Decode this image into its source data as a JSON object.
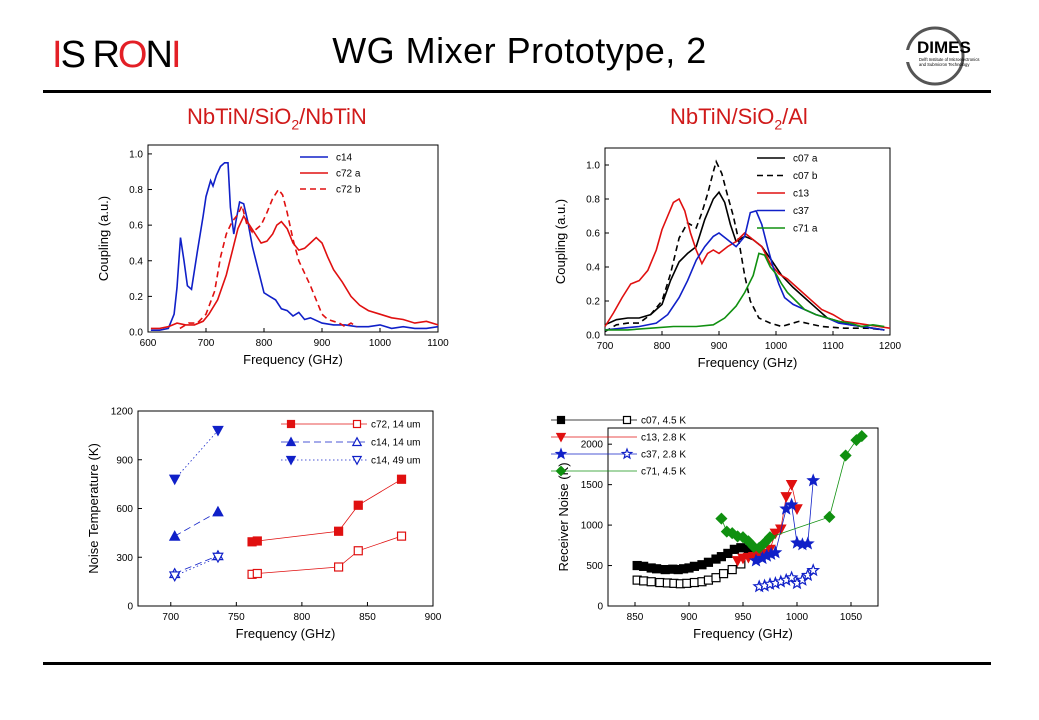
{
  "header": {
    "title": "WG Mixer Prototype, 2",
    "logo_left": "IS RON I",
    "logo_right": {
      "main": "DIMES",
      "line1": "Delft Institute of Microelectronics",
      "line2": "and Submicron Technology"
    }
  },
  "subtitles": {
    "left_pre": "NbTiN/SiO",
    "left_sub": "2",
    "left_post": "/NbTiN",
    "right_pre": "NbTiN/SiO",
    "right_sub": "2",
    "right_post": "/Al"
  },
  "colors": {
    "red": "#e01010",
    "blue": "#1020c8",
    "green": "#109010",
    "black": "#000000"
  },
  "chart_data": [
    {
      "type": "line",
      "xlabel": "Frequency (GHz)",
      "ylabel": "Coupling (a.u.)",
      "xlim": [
        600,
        1100
      ],
      "ylim": [
        0,
        1.05
      ],
      "xticks": [
        600,
        700,
        800,
        900,
        1000,
        1100
      ],
      "yticks": [
        0.0,
        0.2,
        0.4,
        0.6,
        0.8,
        1.0
      ],
      "xtick_labels": [
        "600",
        "700",
        "800",
        "900",
        "1000",
        "1100"
      ],
      "ytick_labels": [
        "0.0",
        "0.2",
        "0.4",
        "0.6",
        "0.8",
        "1.0"
      ],
      "legend_position": "top-right",
      "series": [
        {
          "name": "c14",
          "color": "#1020c8",
          "dash": "",
          "x": [
            605,
            620,
            635,
            645,
            650,
            656,
            662,
            668,
            675,
            685,
            695,
            700,
            708,
            712,
            718,
            725,
            732,
            738,
            742,
            748,
            752,
            758,
            765,
            772,
            780,
            790,
            800,
            810,
            820,
            830,
            840,
            850,
            860,
            870,
            880,
            900,
            920,
            940,
            960,
            980,
            1000,
            1020,
            1040,
            1060,
            1080,
            1100
          ],
          "y": [
            0.01,
            0.01,
            0.02,
            0.1,
            0.25,
            0.53,
            0.4,
            0.26,
            0.24,
            0.45,
            0.65,
            0.76,
            0.85,
            0.82,
            0.88,
            0.93,
            0.95,
            0.95,
            0.7,
            0.55,
            0.63,
            0.73,
            0.72,
            0.62,
            0.48,
            0.35,
            0.22,
            0.2,
            0.18,
            0.13,
            0.12,
            0.09,
            0.11,
            0.07,
            0.08,
            0.05,
            0.04,
            0.04,
            0.03,
            0.03,
            0.04,
            0.02,
            0.03,
            0.02,
            0.02,
            0.03
          ]
        },
        {
          "name": "c72 a",
          "color": "#e01010",
          "dash": "",
          "x": [
            605,
            620,
            635,
            650,
            665,
            680,
            695,
            705,
            720,
            735,
            745,
            755,
            765,
            775,
            785,
            795,
            805,
            815,
            822,
            830,
            840,
            850,
            860,
            870,
            880,
            890,
            900,
            910,
            920,
            935,
            950,
            965,
            980,
            1000,
            1020,
            1040,
            1060,
            1080,
            1100
          ],
          "y": [
            0.02,
            0.02,
            0.03,
            0.05,
            0.04,
            0.04,
            0.06,
            0.1,
            0.18,
            0.32,
            0.45,
            0.58,
            0.65,
            0.6,
            0.55,
            0.5,
            0.51,
            0.55,
            0.6,
            0.62,
            0.58,
            0.5,
            0.46,
            0.47,
            0.5,
            0.53,
            0.5,
            0.42,
            0.35,
            0.28,
            0.2,
            0.15,
            0.12,
            0.1,
            0.08,
            0.07,
            0.05,
            0.06,
            0.04
          ]
        },
        {
          "name": "c72 b",
          "color": "#e01010",
          "dash": "6,4",
          "x": [
            655,
            670,
            685,
            700,
            715,
            725,
            735,
            745,
            755,
            762,
            770,
            780,
            795,
            805,
            815,
            825,
            832,
            840,
            850,
            860,
            870,
            880,
            890,
            900,
            910,
            920,
            930,
            940,
            950,
            960
          ],
          "y": [
            0.02,
            0.05,
            0.05,
            0.1,
            0.23,
            0.42,
            0.55,
            0.62,
            0.66,
            0.71,
            0.61,
            0.56,
            0.6,
            0.67,
            0.75,
            0.8,
            0.77,
            0.67,
            0.52,
            0.4,
            0.33,
            0.26,
            0.18,
            0.1,
            0.07,
            0.06,
            0.05,
            0.03,
            0.05,
            0.03
          ]
        }
      ]
    },
    {
      "type": "line",
      "xlabel": "Frequency (GHz)",
      "ylabel": "Coupling (a.u.)",
      "xlim": [
        700,
        1200
      ],
      "ylim": [
        0,
        1.1
      ],
      "xticks": [
        700,
        800,
        900,
        1000,
        1100,
        1200
      ],
      "yticks": [
        0.0,
        0.2,
        0.4,
        0.6,
        0.8,
        1.0
      ],
      "xtick_labels": [
        "700",
        "800",
        "900",
        "1000",
        "1100",
        "1200"
      ],
      "ytick_labels": [
        "0.0",
        "0.2",
        "0.4",
        "0.6",
        "0.8",
        "1.0"
      ],
      "legend_position": "top-right",
      "series": [
        {
          "name": "c07 a",
          "color": "#000000",
          "dash": "",
          "x": [
            700,
            720,
            740,
            760,
            780,
            800,
            815,
            830,
            845,
            860,
            875,
            890,
            900,
            910,
            920,
            930,
            945,
            960,
            975,
            990,
            1010,
            1030,
            1050,
            1070,
            1090,
            1110,
            1130,
            1150,
            1170,
            1190
          ],
          "y": [
            0.06,
            0.09,
            0.1,
            0.1,
            0.12,
            0.18,
            0.32,
            0.43,
            0.48,
            0.52,
            0.68,
            0.8,
            0.84,
            0.78,
            0.65,
            0.55,
            0.58,
            0.56,
            0.52,
            0.45,
            0.35,
            0.28,
            0.22,
            0.16,
            0.1,
            0.08,
            0.06,
            0.05,
            0.04,
            0.03
          ]
        },
        {
          "name": "c07 b",
          "color": "#000000",
          "dash": "6,4",
          "x": [
            700,
            720,
            740,
            760,
            780,
            800,
            815,
            830,
            845,
            860,
            870,
            880,
            890,
            895,
            905,
            915,
            925,
            935,
            945,
            955,
            970,
            990,
            1010,
            1040,
            1080,
            1120,
            1160,
            1190
          ],
          "y": [
            0.02,
            0.06,
            0.07,
            0.07,
            0.12,
            0.2,
            0.36,
            0.57,
            0.66,
            0.63,
            0.72,
            0.83,
            0.96,
            1.02,
            0.95,
            0.82,
            0.7,
            0.55,
            0.35,
            0.2,
            0.1,
            0.07,
            0.05,
            0.08,
            0.05,
            0.04,
            0.04,
            0.03
          ]
        },
        {
          "name": "c13",
          "color": "#e01010",
          "dash": "",
          "x": [
            700,
            715,
            730,
            745,
            760,
            775,
            790,
            800,
            810,
            820,
            830,
            840,
            850,
            860,
            870,
            880,
            890,
            900,
            915,
            930,
            945,
            960,
            975,
            990,
            1005,
            1020,
            1040,
            1060,
            1080,
            1100,
            1120,
            1140,
            1160,
            1180,
            1200
          ],
          "y": [
            0.05,
            0.13,
            0.22,
            0.3,
            0.32,
            0.38,
            0.5,
            0.62,
            0.7,
            0.78,
            0.8,
            0.73,
            0.6,
            0.5,
            0.42,
            0.48,
            0.5,
            0.48,
            0.52,
            0.55,
            0.6,
            0.56,
            0.52,
            0.42,
            0.36,
            0.33,
            0.27,
            0.21,
            0.15,
            0.12,
            0.08,
            0.07,
            0.06,
            0.05,
            0.04
          ]
        },
        {
          "name": "c37",
          "color": "#1020c8",
          "dash": "",
          "x": [
            700,
            730,
            760,
            790,
            810,
            830,
            845,
            860,
            875,
            890,
            900,
            915,
            930,
            945,
            955,
            965,
            975,
            985,
            995,
            1005,
            1015,
            1030,
            1050,
            1070,
            1090,
            1110,
            1130,
            1150,
            1170,
            1190
          ],
          "y": [
            0.03,
            0.04,
            0.05,
            0.07,
            0.12,
            0.22,
            0.32,
            0.44,
            0.52,
            0.58,
            0.6,
            0.56,
            0.52,
            0.58,
            0.72,
            0.73,
            0.65,
            0.52,
            0.4,
            0.3,
            0.22,
            0.18,
            0.15,
            0.12,
            0.1,
            0.07,
            0.06,
            0.05,
            0.04,
            0.03
          ]
        },
        {
          "name": "c71 a",
          "color": "#109010",
          "dash": "",
          "x": [
            700,
            740,
            780,
            820,
            860,
            890,
            910,
            930,
            945,
            960,
            970,
            980,
            990,
            1000,
            1010,
            1020,
            1035,
            1050,
            1070,
            1090,
            1110,
            1130,
            1150,
            1170,
            1190
          ],
          "y": [
            0.03,
            0.03,
            0.04,
            0.05,
            0.05,
            0.06,
            0.1,
            0.17,
            0.25,
            0.35,
            0.48,
            0.47,
            0.4,
            0.36,
            0.3,
            0.25,
            0.2,
            0.15,
            0.12,
            0.1,
            0.08,
            0.07,
            0.05,
            0.06,
            0.05
          ]
        }
      ]
    },
    {
      "type": "scatter",
      "xlabel": "Frequency (GHz)",
      "ylabel": "Noise Temperature (K)",
      "xlim": [
        675,
        900
      ],
      "ylim": [
        0,
        1200
      ],
      "xticks": [
        700,
        750,
        800,
        850,
        900
      ],
      "yticks": [
        0,
        300,
        600,
        900,
        1200
      ],
      "xtick_labels": [
        "700",
        "750",
        "800",
        "850",
        "900"
      ],
      "ytick_labels": [
        "0",
        "300",
        "600",
        "900",
        "1200"
      ],
      "legend_position": "top-right",
      "series": [
        {
          "name": "c72, 14 um",
          "color": "#e01010",
          "marker": "square",
          "filled": true,
          "line": "solid",
          "x": [
            762,
            766,
            828,
            843,
            876
          ],
          "y": [
            395,
            400,
            460,
            620,
            780
          ]
        },
        {
          "name": "",
          "color": "#e01010",
          "marker": "square",
          "filled": false,
          "line": "solid",
          "x": [
            762,
            766,
            828,
            843,
            876
          ],
          "y": [
            195,
            200,
            240,
            340,
            430
          ]
        },
        {
          "name": "c14, 14 um",
          "color": "#1020c8",
          "marker": "triangle-up",
          "filled": true,
          "line": "dash",
          "x": [
            703,
            736
          ],
          "y": [
            430,
            580
          ]
        },
        {
          "name": "",
          "color": "#1020c8",
          "marker": "triangle-up",
          "filled": false,
          "line": "dash",
          "x": [
            703,
            736
          ],
          "y": [
            200,
            310
          ]
        },
        {
          "name": "c14, 49 um",
          "color": "#1020c8",
          "marker": "triangle-down",
          "filled": true,
          "line": "dot",
          "x": [
            703,
            736
          ],
          "y": [
            780,
            1080
          ]
        },
        {
          "name": "",
          "color": "#1020c8",
          "marker": "triangle-down",
          "filled": false,
          "line": "dot",
          "x": [
            703,
            736
          ],
          "y": [
            185,
            300
          ]
        }
      ]
    },
    {
      "type": "scatter",
      "xlabel": "Frequency (GHz)",
      "ylabel": "Receiver Noise (K)",
      "xlim": [
        825,
        1075
      ],
      "ylim": [
        0,
        2200
      ],
      "xticks": [
        850,
        900,
        950,
        1000,
        1050
      ],
      "yticks": [
        0,
        500,
        1000,
        1500,
        2000
      ],
      "xtick_labels": [
        "850",
        "900",
        "950",
        "1000",
        "1050"
      ],
      "ytick_labels": [
        "0",
        "500",
        "1000",
        "1500",
        "2000"
      ],
      "legend_position": "top-left",
      "series": [
        {
          "name": "c07, 4.5 K",
          "color": "#000000",
          "marker": "square",
          "filled": true,
          "line": "solid",
          "x": [
            852,
            858,
            865,
            870,
            878,
            885,
            890,
            895,
            900,
            905,
            912,
            918,
            925,
            930,
            936,
            942,
            948,
            955,
            962
          ],
          "y": [
            500,
            490,
            470,
            460,
            450,
            455,
            450,
            460,
            470,
            490,
            510,
            540,
            580,
            610,
            650,
            700,
            720,
            700,
            650
          ]
        },
        {
          "name": "",
          "color": "#000000",
          "marker": "square",
          "filled": false,
          "line": "solid",
          "x": [
            852,
            858,
            865,
            873,
            880,
            886,
            892,
            898,
            905,
            912,
            918,
            925,
            932,
            940,
            948
          ],
          "y": [
            320,
            310,
            300,
            290,
            285,
            280,
            275,
            280,
            290,
            300,
            320,
            350,
            400,
            450,
            520
          ]
        },
        {
          "name": "c13, 2.8 K",
          "color": "#e01010",
          "marker": "triangle-down",
          "filled": true,
          "line": "solid",
          "x": [
            945,
            950,
            955,
            960,
            965,
            970,
            975,
            980,
            985,
            990,
            995,
            1000
          ],
          "y": [
            560,
            590,
            600,
            610,
            630,
            650,
            700,
            900,
            950,
            1350,
            1500,
            1200
          ]
        },
        {
          "name": "c37, 2.8 K",
          "color": "#1020c8",
          "marker": "star",
          "filled": true,
          "line": "solid",
          "x": [
            962,
            968,
            972,
            976,
            980,
            990,
            995,
            1000,
            1005,
            1010,
            1015
          ],
          "y": [
            560,
            590,
            620,
            640,
            660,
            1200,
            1250,
            780,
            760,
            770,
            1550
          ]
        },
        {
          "name": "",
          "color": "#1020c8",
          "marker": "star",
          "filled": false,
          "line": "solid",
          "x": [
            965,
            970,
            975,
            980,
            985,
            990,
            995,
            1000,
            1005,
            1010,
            1015
          ],
          "y": [
            240,
            250,
            270,
            280,
            300,
            320,
            350,
            280,
            320,
            380,
            440
          ]
        },
        {
          "name": "c71, 4.5 K",
          "color": "#109010",
          "marker": "diamond",
          "filled": true,
          "line": "solid",
          "x": [
            930,
            935,
            940,
            945,
            950,
            955,
            960,
            965,
            970,
            975,
            1030,
            1045,
            1055,
            1060
          ],
          "y": [
            1080,
            920,
            900,
            860,
            850,
            800,
            730,
            720,
            780,
            850,
            1100,
            1860,
            2050,
            2100
          ]
        }
      ]
    }
  ]
}
